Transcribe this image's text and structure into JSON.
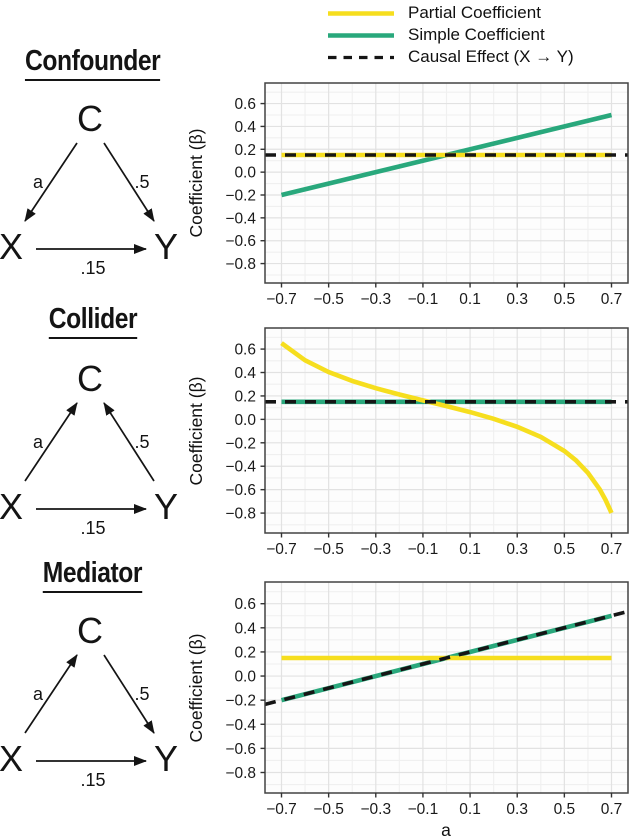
{
  "legend": {
    "items": [
      {
        "label": "Partial Coefficient",
        "color": "#F6DE1E",
        "style": "solid"
      },
      {
        "label": "Simple Coefficient",
        "color": "#29A87C",
        "style": "solid"
      },
      {
        "label": "Causal Effect (X → Y)",
        "color": "#151515",
        "style": "dashed"
      }
    ]
  },
  "diagrams": [
    {
      "title": "Confounder",
      "nodes": {
        "top": "C",
        "left": "X",
        "right": "Y"
      },
      "edges": [
        {
          "from": "C",
          "to": "X",
          "label": "a"
        },
        {
          "from": "C",
          "to": "Y",
          "label": ".5"
        },
        {
          "from": "X",
          "to": "Y",
          "label": ".15"
        }
      ]
    },
    {
      "title": "Collider",
      "nodes": {
        "top": "C",
        "left": "X",
        "right": "Y"
      },
      "edges": [
        {
          "from": "X",
          "to": "C",
          "label": "a"
        },
        {
          "from": "Y",
          "to": "C",
          "label": ".5"
        },
        {
          "from": "X",
          "to": "Y",
          "label": ".15"
        }
      ]
    },
    {
      "title": "Mediator",
      "nodes": {
        "top": "C",
        "left": "X",
        "right": "Y"
      },
      "edges": [
        {
          "from": "X",
          "to": "C",
          "label": "a"
        },
        {
          "from": "C",
          "to": "Y",
          "label": ".5"
        },
        {
          "from": "X",
          "to": "Y",
          "label": ".15"
        }
      ]
    }
  ],
  "chart_data": [
    {
      "type": "line",
      "panel": "Confounder",
      "xlabel": "",
      "ylabel": "Coefficient (β)",
      "xlim": [
        -0.77,
        0.77
      ],
      "ylim": [
        -0.97,
        0.78
      ],
      "x_ticks": [
        -0.7,
        -0.5,
        -0.3,
        -0.1,
        0.1,
        0.3,
        0.5,
        0.7
      ],
      "y_ticks": [
        0.6,
        0.4,
        0.2,
        0.0,
        -0.2,
        -0.4,
        -0.6,
        -0.8
      ],
      "grid": true,
      "legend_position": "top",
      "series": [
        {
          "name": "Simple Coefficient",
          "color": "#29A87C",
          "dash": null,
          "width": 4.6,
          "points": [
            [
              -0.7,
              -0.2
            ],
            [
              0.7,
              0.5
            ]
          ]
        },
        {
          "name": "Partial Coefficient",
          "color": "#F6DE1E",
          "dash": null,
          "width": 4.6,
          "points": [
            [
              -0.7,
              0.15
            ],
            [
              0.7,
              0.15
            ]
          ]
        },
        {
          "name": "Causal Effect (X → Y)",
          "color": "#151515",
          "dash": [
            11,
            9
          ],
          "width": 3.6,
          "points": [
            [
              -0.77,
              0.15
            ],
            [
              0.77,
              0.15
            ]
          ]
        }
      ]
    },
    {
      "type": "line",
      "panel": "Collider",
      "xlabel": "",
      "ylabel": "Coefficient (β)",
      "xlim": [
        -0.77,
        0.77
      ],
      "ylim": [
        -0.97,
        0.78
      ],
      "x_ticks": [
        -0.7,
        -0.5,
        -0.3,
        -0.1,
        0.1,
        0.3,
        0.5,
        0.7
      ],
      "y_ticks": [
        0.6,
        0.4,
        0.2,
        0.0,
        -0.2,
        -0.4,
        -0.6,
        -0.8
      ],
      "grid": true,
      "legend_position": "top",
      "series": [
        {
          "name": "Simple Coefficient",
          "color": "#29A87C",
          "dash": null,
          "width": 4.6,
          "points": [
            [
              -0.7,
              0.15
            ],
            [
              0.7,
              0.15
            ]
          ]
        },
        {
          "name": "Partial Coefficient",
          "color": "#F6DE1E",
          "dash": null,
          "width": 4.6,
          "points": [
            [
              -0.7,
              0.651
            ],
            [
              -0.6,
              0.504
            ],
            [
              -0.5,
              0.404
            ],
            [
              -0.4,
              0.328
            ],
            [
              -0.3,
              0.266
            ],
            [
              -0.2,
              0.212
            ],
            [
              -0.1,
              0.162
            ],
            [
              0.0,
              0.113
            ],
            [
              0.1,
              0.062
            ],
            [
              0.2,
              0.005
            ],
            [
              0.3,
              -0.063
            ],
            [
              0.4,
              -0.15
            ],
            [
              0.5,
              -0.27
            ],
            [
              0.55,
              -0.351
            ],
            [
              0.6,
              -0.456
            ],
            [
              0.65,
              -0.597
            ],
            [
              0.675,
              -0.688
            ],
            [
              0.7,
              -0.798
            ]
          ]
        },
        {
          "name": "Causal Effect (X → Y)",
          "color": "#151515",
          "dash": [
            11,
            9
          ],
          "width": 3.6,
          "points": [
            [
              -0.77,
              0.15
            ],
            [
              0.77,
              0.15
            ]
          ]
        }
      ]
    },
    {
      "type": "line",
      "panel": "Mediator",
      "xlabel": "a",
      "ylabel": "Coefficient (β)",
      "xlim": [
        -0.77,
        0.77
      ],
      "ylim": [
        -0.97,
        0.78
      ],
      "x_ticks": [
        -0.7,
        -0.5,
        -0.3,
        -0.1,
        0.1,
        0.3,
        0.5,
        0.7
      ],
      "y_ticks": [
        0.6,
        0.4,
        0.2,
        0.0,
        -0.2,
        -0.4,
        -0.6,
        -0.8
      ],
      "grid": true,
      "legend_position": "top",
      "series": [
        {
          "name": "Simple Coefficient",
          "color": "#29A87C",
          "dash": null,
          "width": 4.6,
          "points": [
            [
              -0.7,
              -0.2
            ],
            [
              0.7,
              0.5
            ]
          ]
        },
        {
          "name": "Partial Coefficient",
          "color": "#F6DE1E",
          "dash": null,
          "width": 4.6,
          "points": [
            [
              -0.7,
              0.15
            ],
            [
              0.7,
              0.15
            ]
          ]
        },
        {
          "name": "Causal Effect (X → Y)",
          "color": "#151515",
          "dash": [
            11,
            9
          ],
          "width": 3.6,
          "points": [
            [
              -0.77,
              -0.235
            ],
            [
              0.77,
              0.535
            ]
          ]
        }
      ]
    }
  ]
}
